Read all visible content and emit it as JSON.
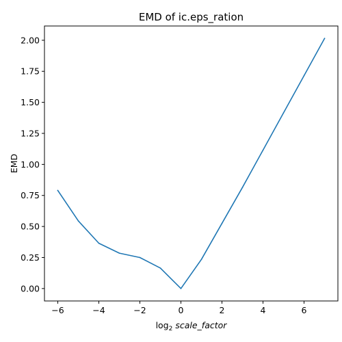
{
  "chart_data": {
    "type": "line",
    "title": "EMD of ic.eps_ration",
    "xlabel_prefix": "log",
    "xlabel_subscript": "2",
    "xlabel_var": "scale_factor",
    "ylabel": "EMD",
    "x": [
      -6,
      -5,
      -4,
      -3,
      -2,
      -1,
      0,
      1,
      2,
      3,
      4,
      5,
      6,
      7
    ],
    "series": [
      {
        "values": [
          0.79,
          0.545,
          0.365,
          0.285,
          0.25,
          0.165,
          0.0,
          0.235,
          0.525,
          0.815,
          1.115,
          1.415,
          1.715,
          2.015
        ],
        "color": "#1f77b4"
      }
    ],
    "xlim": [
      -6.65,
      7.65
    ],
    "ylim": [
      -0.1,
      2.115
    ],
    "xticks": [
      -6,
      -4,
      -2,
      0,
      2,
      4,
      6
    ],
    "xtick_labels": [
      "−6",
      "−4",
      "−2",
      "0",
      "2",
      "4",
      "6"
    ],
    "yticks": [
      0.0,
      0.25,
      0.5,
      0.75,
      1.0,
      1.25,
      1.5,
      1.75,
      2.0
    ],
    "ytick_labels": [
      "0.00",
      "0.25",
      "0.50",
      "0.75",
      "1.00",
      "1.25",
      "1.50",
      "1.75",
      "2.00"
    ],
    "grid": false,
    "legend": "none"
  }
}
